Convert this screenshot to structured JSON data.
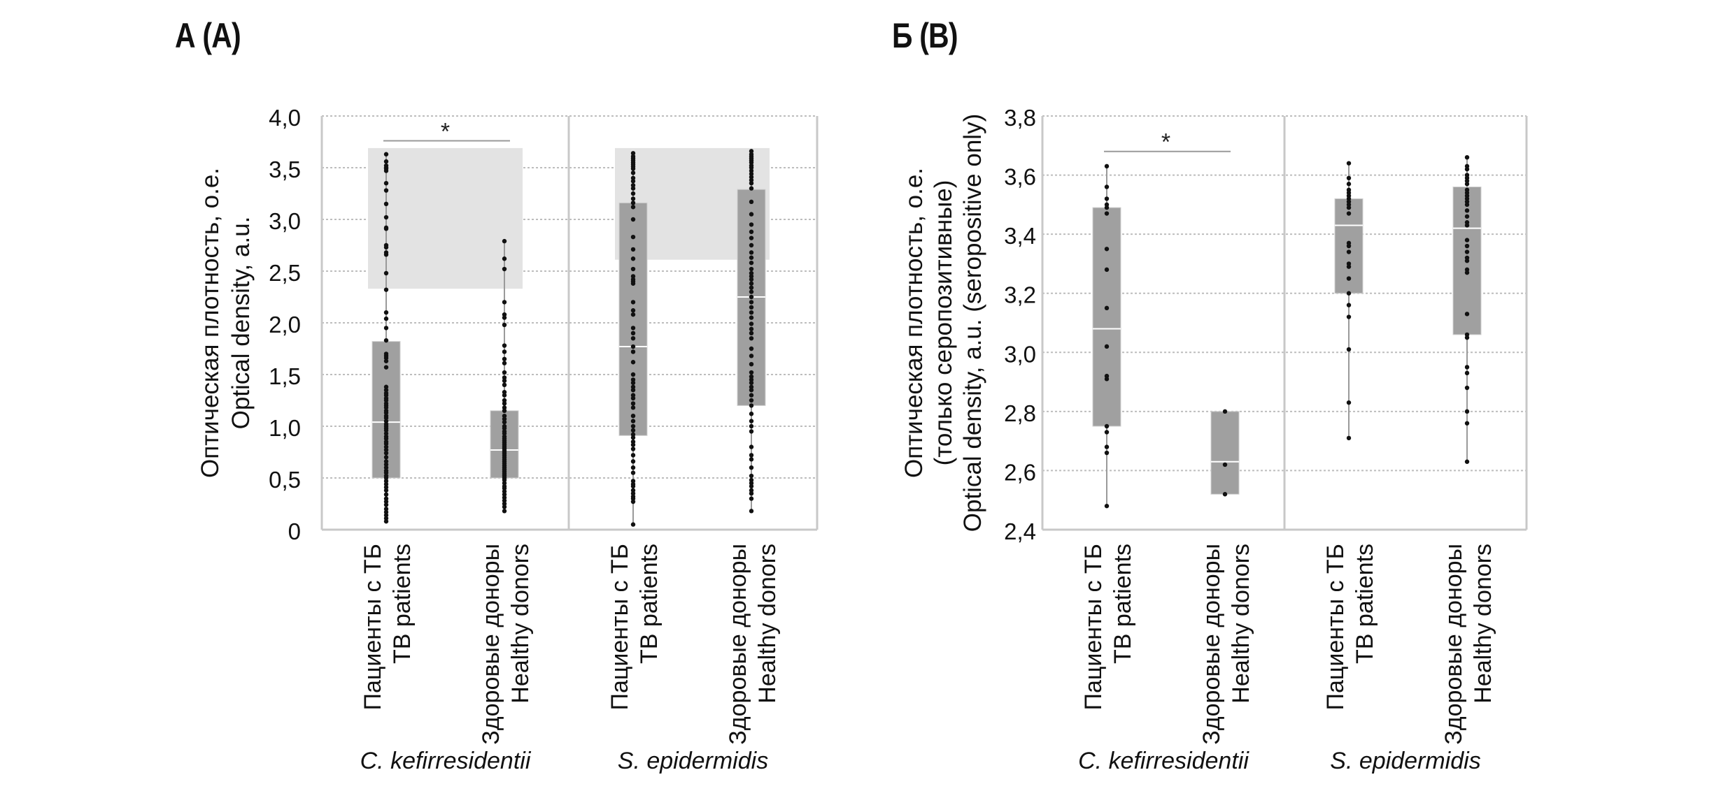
{
  "panels": [
    {
      "title": "А (A)",
      "ylabel_lines": [
        "Оптическая плотность, о.е.",
        "Optical density, a.u."
      ],
      "yticks": [
        "0",
        "0,5",
        "1,0",
        "1,5",
        "2,0",
        "2,5",
        "3,0",
        "3,5",
        "4,0"
      ],
      "species": [
        "C. kefirresidentii",
        "S. epidermidis"
      ],
      "significance": "*"
    },
    {
      "title": "Б (B)",
      "ylabel_lines": [
        "Оптическая плотность, о.е.",
        "(только серопозитивные)",
        "Optical density, a.u. (seropositive only)"
      ],
      "yticks": [
        "2,4",
        "2,6",
        "2,8",
        "3,0",
        "3,2",
        "3,4",
        "3,6",
        "3,8"
      ],
      "species": [
        "C. kefirresidentii",
        "S. epidermidis"
      ],
      "significance": "*"
    }
  ],
  "group_labels": {
    "tb": [
      "Пациенты с ТБ",
      "TB patients"
    ],
    "hd": [
      "Здоровые доноры",
      "Healthy donors"
    ]
  },
  "colors": {
    "box": "#a0a0a0",
    "median": "#ffffff",
    "shade": "#e3e3e3",
    "grid": "#bdbdbd",
    "frame": "#c8c8c8",
    "dot": "#111111",
    "whisker": "#9a9a9a"
  },
  "chart_data": [
    {
      "type": "box",
      "title": "А (A)",
      "ylabel": "Оптическая плотность, о.е. / Optical density, a.u.",
      "ylim": [
        0,
        4.0
      ],
      "yticks": [
        0,
        0.5,
        1.0,
        1.5,
        2.0,
        2.5,
        3.0,
        3.5,
        4.0
      ],
      "grid": true,
      "facets": [
        {
          "species": "C. kefirresidentii",
          "seropositive_range": [
            2.33,
            3.69
          ],
          "significance": {
            "groups": [
              "tb",
              "hd"
            ],
            "label": "*",
            "y": 3.76
          },
          "groups": [
            {
              "key": "tb",
              "q1": 0.5,
              "median": 1.04,
              "q3": 1.82,
              "min": 0.08,
              "max": 3.63,
              "points": [
                3.63,
                3.56,
                3.52,
                3.5,
                3.49,
                3.47,
                3.35,
                3.28,
                3.15,
                3.02,
                2.92,
                2.91,
                2.75,
                2.73,
                2.68,
                2.66,
                2.48,
                2.32,
                2.1,
                2.04,
                1.95,
                1.83,
                1.7,
                1.68,
                1.66,
                1.63,
                1.57,
                1.38,
                1.35,
                1.32,
                1.3,
                1.27,
                1.25,
                1.22,
                1.2,
                1.18,
                1.15,
                1.13,
                1.1,
                1.08,
                1.05,
                1.02,
                1.0,
                0.98,
                0.96,
                0.93,
                0.9,
                0.88,
                0.85,
                0.83,
                0.8,
                0.77,
                0.74,
                0.7,
                0.66,
                0.63,
                0.6,
                0.57,
                0.55,
                0.52,
                0.5,
                0.47,
                0.44,
                0.41,
                0.38,
                0.34,
                0.3,
                0.27,
                0.24,
                0.2,
                0.17,
                0.14,
                0.11,
                0.08
              ]
            },
            {
              "key": "hd",
              "q1": 0.5,
              "median": 0.77,
              "q3": 1.15,
              "min": 0.18,
              "max": 2.79,
              "points": [
                2.79,
                2.62,
                2.52,
                2.2,
                2.08,
                2.05,
                1.98,
                1.78,
                1.72,
                1.65,
                1.61,
                1.52,
                1.47,
                1.44,
                1.4,
                1.33,
                1.3,
                1.25,
                1.22,
                1.18,
                1.15,
                1.1,
                1.07,
                1.04,
                1.0,
                0.98,
                0.95,
                0.93,
                0.9,
                0.88,
                0.86,
                0.84,
                0.82,
                0.8,
                0.78,
                0.76,
                0.74,
                0.72,
                0.7,
                0.68,
                0.66,
                0.64,
                0.62,
                0.6,
                0.58,
                0.56,
                0.54,
                0.52,
                0.5,
                0.48,
                0.45,
                0.42,
                0.4,
                0.37,
                0.34,
                0.31,
                0.28,
                0.25,
                0.22,
                0.18
              ]
            }
          ]
        },
        {
          "species": "S. epidermidis",
          "seropositive_range": [
            2.61,
            3.69
          ],
          "groups": [
            {
              "key": "tb",
              "q1": 0.91,
              "median": 1.77,
              "q3": 3.16,
              "min": 0.05,
              "max": 3.64,
              "points": [
                3.64,
                3.61,
                3.59,
                3.57,
                3.55,
                3.53,
                3.51,
                3.49,
                3.45,
                3.4,
                3.37,
                3.33,
                3.3,
                3.25,
                3.2,
                3.16,
                3.12,
                3.0,
                2.83,
                2.71,
                2.62,
                2.52,
                2.45,
                2.42,
                2.4,
                2.38,
                2.2,
                2.12,
                2.08,
                1.95,
                1.9,
                1.85,
                1.77,
                1.72,
                1.62,
                1.5,
                1.45,
                1.42,
                1.38,
                1.35,
                1.3,
                1.27,
                1.22,
                1.18,
                1.1,
                1.05,
                1.0,
                0.96,
                0.92,
                0.89,
                0.85,
                0.82,
                0.78,
                0.72,
                0.66,
                0.6,
                0.55,
                0.47,
                0.44,
                0.42,
                0.38,
                0.35,
                0.32,
                0.3,
                0.27,
                0.05
              ]
            },
            {
              "key": "hd",
              "q1": 1.2,
              "median": 2.25,
              "q3": 3.29,
              "min": 0.18,
              "max": 3.66,
              "points": [
                3.66,
                3.63,
                3.61,
                3.59,
                3.57,
                3.55,
                3.52,
                3.5,
                3.47,
                3.44,
                3.41,
                3.38,
                3.35,
                3.3,
                3.17,
                3.05,
                2.95,
                2.88,
                2.82,
                2.75,
                2.68,
                2.63,
                2.58,
                2.52,
                2.48,
                2.45,
                2.42,
                2.38,
                2.34,
                2.3,
                2.25,
                2.2,
                2.15,
                2.1,
                2.05,
                1.99,
                1.94,
                1.9,
                1.85,
                1.75,
                1.68,
                1.6,
                1.52,
                1.48,
                1.45,
                1.42,
                1.38,
                1.35,
                1.3,
                1.25,
                1.2,
                1.12,
                1.05,
                1.0,
                0.95,
                0.8,
                0.72,
                0.68,
                0.6,
                0.52,
                0.48,
                0.45,
                0.42,
                0.38,
                0.35,
                0.3,
                0.18
              ]
            }
          ]
        }
      ]
    },
    {
      "type": "box",
      "title": "Б (B)",
      "ylabel": "Оптическая плотность, о.е. (только серопозитивные) / Optical density, a.u. (seropositive only)",
      "ylim": [
        2.4,
        3.8
      ],
      "yticks": [
        2.4,
        2.6,
        2.8,
        3.0,
        3.2,
        3.4,
        3.6,
        3.8
      ],
      "grid": true,
      "facets": [
        {
          "species": "C. kefirresidentii",
          "significance": {
            "groups": [
              "tb",
              "hd"
            ],
            "label": "*",
            "y": 3.68
          },
          "groups": [
            {
              "key": "tb",
              "q1": 2.75,
              "median": 3.08,
              "q3": 3.49,
              "min": 2.48,
              "max": 3.63,
              "points": [
                3.63,
                3.56,
                3.52,
                3.5,
                3.49,
                3.47,
                3.35,
                3.28,
                3.15,
                3.02,
                2.92,
                2.91,
                2.75,
                2.73,
                2.68,
                2.66,
                2.48
              ]
            },
            {
              "key": "hd",
              "q1": 2.52,
              "median": 2.63,
              "q3": 2.8,
              "min": 2.52,
              "max": 2.8,
              "points": [
                2.8,
                2.62,
                2.52
              ]
            }
          ]
        },
        {
          "species": "S. epidermidis",
          "groups": [
            {
              "key": "tb",
              "q1": 3.2,
              "median": 3.43,
              "q3": 3.52,
              "min": 2.71,
              "max": 3.64,
              "points": [
                3.64,
                3.59,
                3.57,
                3.55,
                3.54,
                3.53,
                3.52,
                3.51,
                3.5,
                3.49,
                3.47,
                3.37,
                3.36,
                3.34,
                3.3,
                3.29,
                3.25,
                3.2,
                3.16,
                3.12,
                3.01,
                2.83,
                2.71
              ]
            },
            {
              "key": "hd",
              "q1": 3.06,
              "median": 3.42,
              "q3": 3.56,
              "min": 2.63,
              "max": 3.66,
              "points": [
                3.66,
                3.63,
                3.62,
                3.6,
                3.59,
                3.58,
                3.57,
                3.55,
                3.54,
                3.53,
                3.52,
                3.51,
                3.5,
                3.48,
                3.46,
                3.44,
                3.43,
                3.38,
                3.36,
                3.34,
                3.32,
                3.31,
                3.28,
                3.27,
                3.13,
                3.06,
                3.05,
                2.95,
                2.93,
                2.88,
                2.8,
                2.76,
                2.63
              ]
            }
          ]
        }
      ]
    }
  ]
}
